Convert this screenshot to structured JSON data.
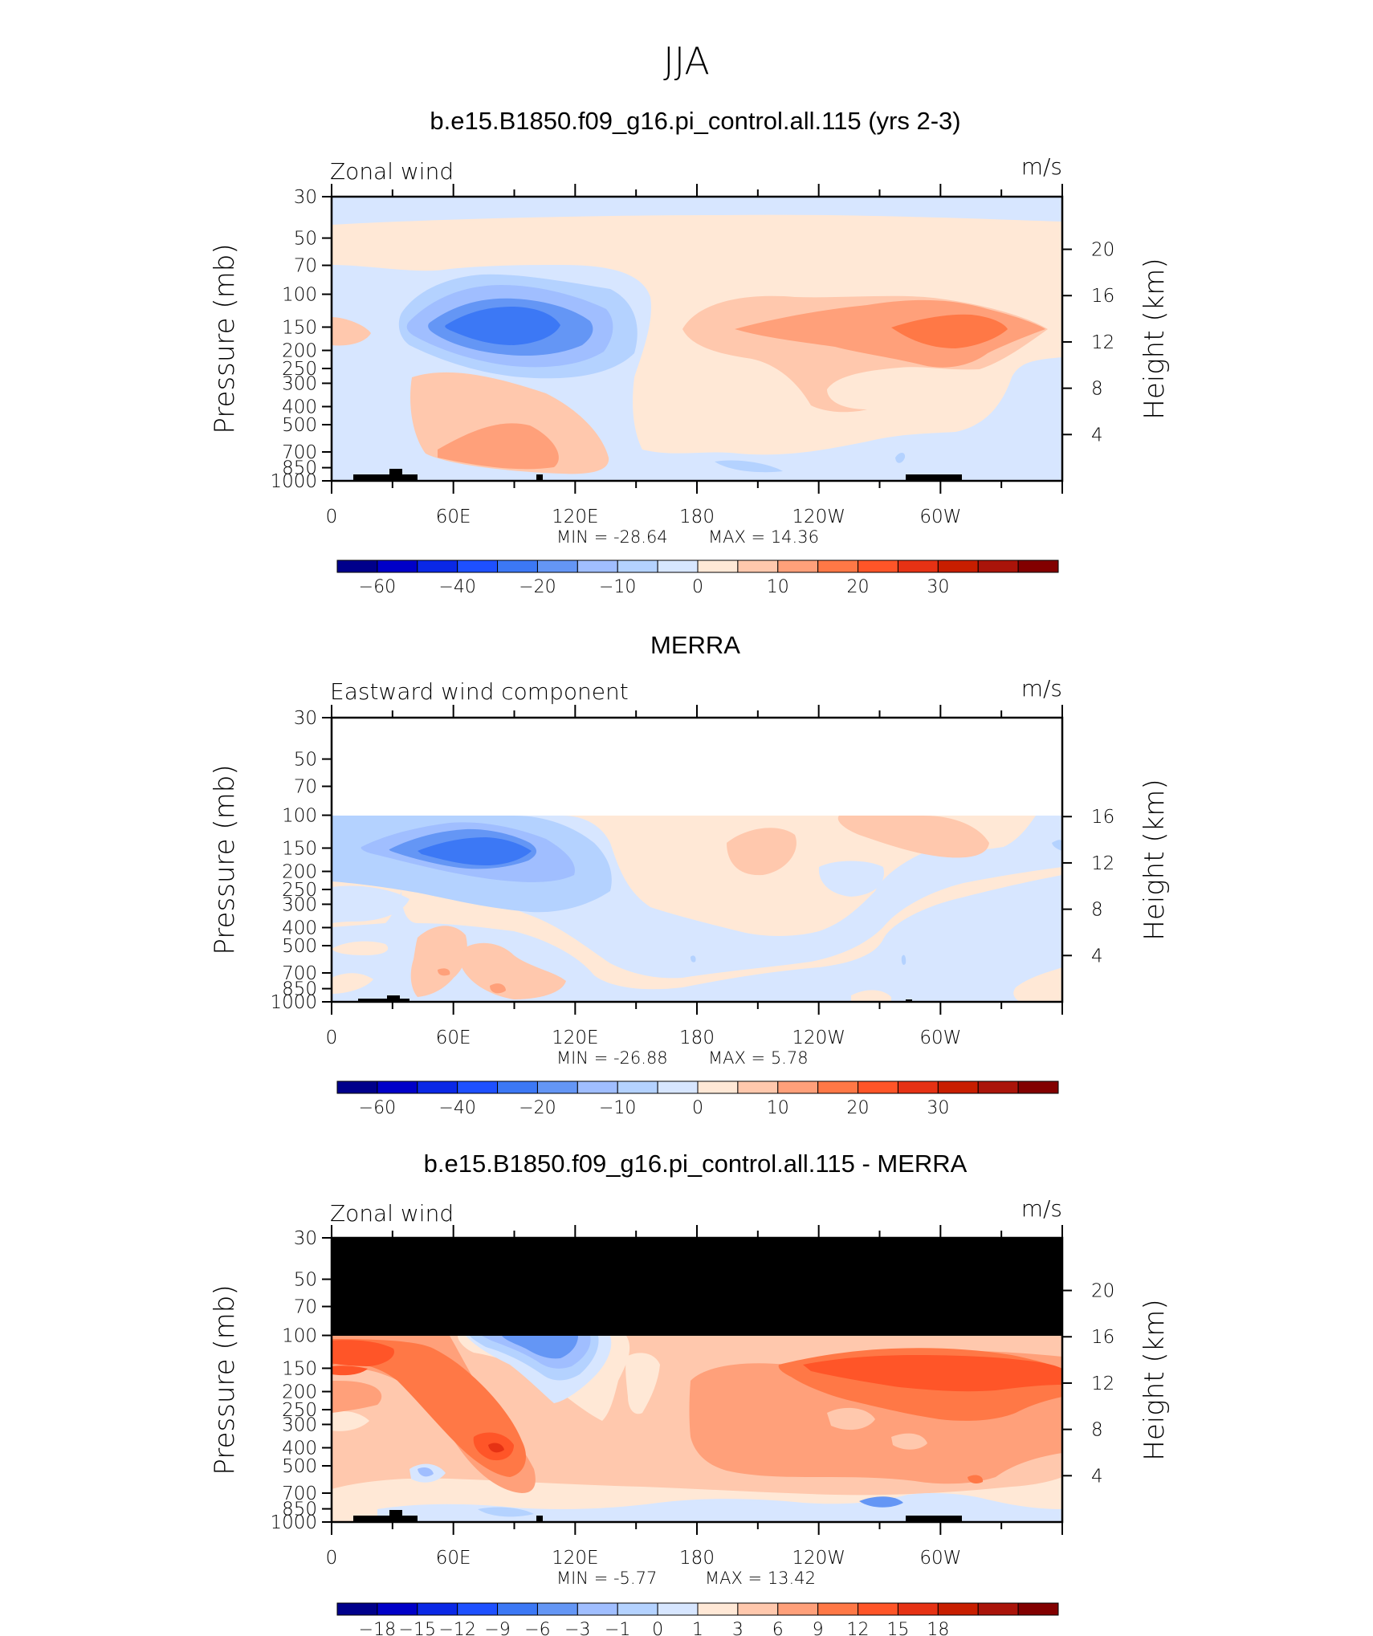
{
  "figure": {
    "title": "JJA",
    "x_tick_labels": [
      "0",
      "60E",
      "120E",
      "180",
      "120W",
      "60W"
    ],
    "y_tick_labels": [
      "30",
      "50",
      "70",
      "100",
      "150",
      "200",
      "250",
      "300",
      "400",
      "500",
      "700",
      "850",
      "1000"
    ],
    "y_label": "Pressure (mb)",
    "right_label": "Height (km)"
  },
  "panels": [
    {
      "title": "b.e15.B1850.f09_g16.pi_control.all.115 (yrs 2-3)",
      "left_string": "Zonal wind",
      "right_string": "m/s",
      "min_text": "MIN = -28.64",
      "max_text": "MAX = 14.36",
      "height_ticks": [
        "20",
        "16",
        "12",
        "8",
        "4"
      ],
      "colorbar_labels": [
        "−60",
        "−40",
        "−20",
        "−10",
        "0",
        "10",
        "20",
        "30"
      ]
    },
    {
      "title": "MERRA",
      "left_string": "Eastward wind component",
      "right_string": "m/s",
      "min_text": "MIN = -26.88",
      "max_text": "MAX = 5.78",
      "height_ticks": [
        "16",
        "12",
        "8",
        "4"
      ],
      "colorbar_labels": [
        "−60",
        "−40",
        "−20",
        "−10",
        "0",
        "10",
        "20",
        "30"
      ]
    },
    {
      "title": "b.e15.B1850.f09_g16.pi_control.all.115 - MERRA",
      "left_string": "Zonal wind",
      "right_string": "m/s",
      "min_text": "MIN = -5.77",
      "max_text": "MAX = 13.42",
      "height_ticks": [
        "20",
        "16",
        "12",
        "8",
        "4"
      ],
      "colorbar_labels": [
        "−18",
        "−15",
        "−12",
        "−9",
        "−6",
        "−3",
        "−1",
        "0",
        "1",
        "3",
        "6",
        "9",
        "12",
        "15",
        "18"
      ]
    }
  ],
  "chart_data": [
    {
      "type": "heatmap",
      "title": "b.e15.B1850.f09_g16.pi_control.all.115 (yrs 2-3)",
      "variable": "Zonal wind",
      "units": "m/s",
      "x": [
        "0",
        "60E",
        "120E",
        "180",
        "120W",
        "60W"
      ],
      "y_pressure_mb": [
        30,
        50,
        70,
        100,
        150,
        200,
        250,
        300,
        400,
        500,
        700,
        850,
        1000
      ],
      "height_km_ticks": [
        20,
        16,
        12,
        8,
        4
      ],
      "contour_levels": [
        -60,
        -50,
        -40,
        -30,
        -20,
        -15,
        -10,
        -5,
        0,
        5,
        10,
        15,
        20,
        25,
        30
      ],
      "min": -28.64,
      "max": 14.36,
      "features": [
        {
          "description": "easterly jet core",
          "lon": 90,
          "p_mb": 150,
          "value": -28.64
        },
        {
          "description": "westerly maximum",
          "lon": 305,
          "p_mb": 150,
          "value": 14.36
        }
      ]
    },
    {
      "type": "heatmap",
      "title": "MERRA",
      "variable": "Eastward wind component",
      "units": "m/s",
      "x": [
        "0",
        "60E",
        "120E",
        "180",
        "120W",
        "60W"
      ],
      "y_pressure_mb": [
        30,
        50,
        70,
        100,
        150,
        200,
        250,
        300,
        400,
        500,
        700,
        850,
        1000
      ],
      "height_km_ticks": [
        16,
        12,
        8,
        4
      ],
      "contour_levels": [
        -60,
        -50,
        -40,
        -30,
        -20,
        -15,
        -10,
        -5,
        0,
        5,
        10,
        15,
        20,
        25,
        30
      ],
      "min": -26.88,
      "max": 5.78,
      "data_top_mb": 100,
      "features": [
        {
          "description": "easterly jet core",
          "lon": 75,
          "p_mb": 150,
          "value": -26.88
        }
      ]
    },
    {
      "type": "heatmap",
      "title": "b.e15.B1850.f09_g16.pi_control.all.115 - MERRA",
      "variable": "Zonal wind",
      "units": "m/s",
      "x": [
        "0",
        "60E",
        "120E",
        "180",
        "120W",
        "60W"
      ],
      "y_pressure_mb": [
        30,
        50,
        70,
        100,
        150,
        200,
        250,
        300,
        400,
        500,
        700,
        850,
        1000
      ],
      "height_km_ticks": [
        20,
        16,
        12,
        8,
        4
      ],
      "contour_levels": [
        -18,
        -15,
        -12,
        -9,
        -6,
        -3,
        -1,
        0,
        1,
        3,
        6,
        9,
        12,
        15,
        18
      ],
      "min": -5.77,
      "max": 13.42,
      "masked_above_mb": 100,
      "features": [
        {
          "description": "positive difference maximum",
          "lon": 10,
          "p_mb": 150,
          "value": 13.42
        },
        {
          "description": "negative difference minimum",
          "lon": 105,
          "p_mb": 125,
          "value": -5.77
        }
      ]
    }
  ],
  "colors": {
    "c1": "#00008b",
    "c2": "#0000c8",
    "c3": "#0a28e6",
    "c4": "#1e50ff",
    "c5": "#3c78f5",
    "c6": "#6496f5",
    "c7": "#a0beff",
    "c8": "#b4d2ff",
    "c9": "#d7e6ff",
    "c10": "#ffe8d6",
    "c11": "#ffc8ad",
    "c12": "#ffa07a",
    "c13": "#ff7846",
    "c14": "#ff5528",
    "c15": "#e63214",
    "c16": "#c81e00",
    "c17": "#aa140a",
    "c18": "#820000"
  }
}
